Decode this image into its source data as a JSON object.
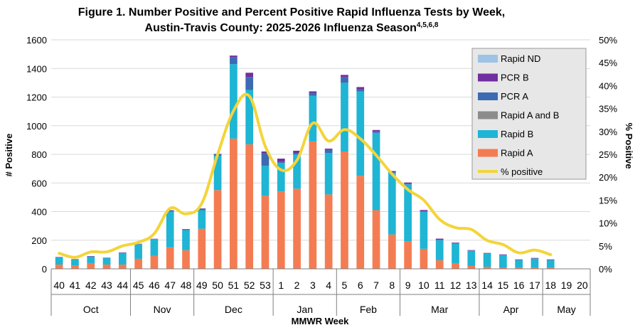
{
  "chart_data": {
    "type": "bar",
    "title": "Figure 1. Number Positive and Percent Positive Rapid Influenza Tests by Week,",
    "subtitle": "Austin-Travis County:  2025-2026 Influenza Season",
    "subtitle_superscript": "4,5,6,8",
    "xlabel": "MMWR Week",
    "ylabel": "# Positive",
    "y2label": "% Positive",
    "ylim": [
      0,
      1600
    ],
    "y2lim": [
      0,
      50
    ],
    "yticks": [
      "0",
      "200",
      "400",
      "600",
      "800",
      "1000",
      "1200",
      "1400",
      "1600"
    ],
    "y2ticks": [
      "0%",
      "5%",
      "10%",
      "15%",
      "20%",
      "25%",
      "30%",
      "35%",
      "40%",
      "45%",
      "50%"
    ],
    "categories": [
      "40",
      "41",
      "42",
      "43",
      "44",
      "45",
      "46",
      "47",
      "48",
      "49",
      "50",
      "51",
      "52",
      "53",
      "1",
      "2",
      "3",
      "4",
      "5",
      "6",
      "7",
      "8",
      "9",
      "10",
      "11",
      "12",
      "13",
      "14",
      "15",
      "16",
      "17",
      "18",
      "19",
      "20"
    ],
    "months": [
      {
        "label": "Oct",
        "start": 0,
        "end": 4
      },
      {
        "label": "Nov",
        "start": 5,
        "end": 8
      },
      {
        "label": "Dec",
        "start": 9,
        "end": 13
      },
      {
        "label": "Jan",
        "start": 14,
        "end": 17
      },
      {
        "label": "Feb",
        "start": 18,
        "end": 21
      },
      {
        "label": "Mar",
        "start": 22,
        "end": 26
      },
      {
        "label": "Apr",
        "start": 27,
        "end": 30
      },
      {
        "label": "May",
        "start": 31,
        "end": 33
      }
    ],
    "legend_position": "top-right",
    "series": [
      {
        "name": "Rapid A",
        "color": "#f47c52",
        "values": [
          30,
          25,
          40,
          30,
          30,
          70,
          90,
          150,
          130,
          280,
          550,
          910,
          870,
          510,
          540,
          560,
          890,
          520,
          820,
          650,
          410,
          240,
          190,
          140,
          60,
          40,
          20,
          15,
          10,
          10,
          10,
          10,
          null,
          null
        ]
      },
      {
        "name": "Rapid B",
        "color": "#1fb5d4",
        "values": [
          50,
          40,
          45,
          45,
          80,
          100,
          115,
          250,
          140,
          130,
          240,
          520,
          380,
          210,
          200,
          240,
          320,
          290,
          480,
          590,
          540,
          430,
          400,
          260,
          140,
          135,
          105,
          90,
          85,
          50,
          60,
          50,
          null,
          null
        ]
      },
      {
        "name": "Rapid A and B",
        "color": "#8c8c8c",
        "values": [
          0,
          0,
          0,
          0,
          0,
          0,
          0,
          0,
          0,
          0,
          0,
          0,
          0,
          0,
          0,
          0,
          0,
          0,
          0,
          0,
          0,
          0,
          0,
          0,
          0,
          0,
          0,
          0,
          0,
          0,
          0,
          0,
          null,
          null
        ]
      },
      {
        "name": "PCR A",
        "color": "#3d6bb3",
        "values": [
          2,
          2,
          2,
          2,
          3,
          3,
          3,
          8,
          5,
          10,
          10,
          50,
          90,
          90,
          10,
          10,
          20,
          25,
          40,
          15,
          10,
          5,
          5,
          3,
          3,
          3,
          3,
          3,
          3,
          3,
          3,
          3,
          null,
          null
        ]
      },
      {
        "name": "PCR B",
        "color": "#7030a0",
        "values": [
          1,
          1,
          2,
          1,
          2,
          2,
          2,
          2,
          3,
          2,
          3,
          10,
          30,
          10,
          20,
          15,
          10,
          5,
          15,
          15,
          10,
          8,
          8,
          8,
          8,
          5,
          3,
          3,
          3,
          3,
          3,
          3,
          null,
          null
        ]
      },
      {
        "name": "Rapid ND",
        "color": "#9dc3e6",
        "values": [
          0,
          0,
          0,
          0,
          0,
          0,
          0,
          0,
          0,
          0,
          0,
          0,
          0,
          0,
          0,
          0,
          0,
          0,
          0,
          0,
          0,
          0,
          0,
          0,
          0,
          0,
          0,
          0,
          0,
          0,
          0,
          0,
          null,
          null
        ]
      }
    ],
    "line_series": {
      "name": "% positive",
      "color": "#f4d43a",
      "axis": "right",
      "values": [
        3.4,
        2.5,
        3.7,
        3.7,
        5.0,
        5.8,
        7.7,
        13.2,
        12.0,
        14.3,
        25.0,
        34.5,
        37.7,
        26.8,
        21.6,
        23.7,
        31.8,
        27.9,
        30.4,
        28.4,
        24.8,
        20.7,
        17.3,
        15.0,
        10.8,
        9.0,
        8.6,
        6.2,
        5.3,
        3.5,
        4.1,
        3.1,
        null,
        null
      ]
    }
  }
}
